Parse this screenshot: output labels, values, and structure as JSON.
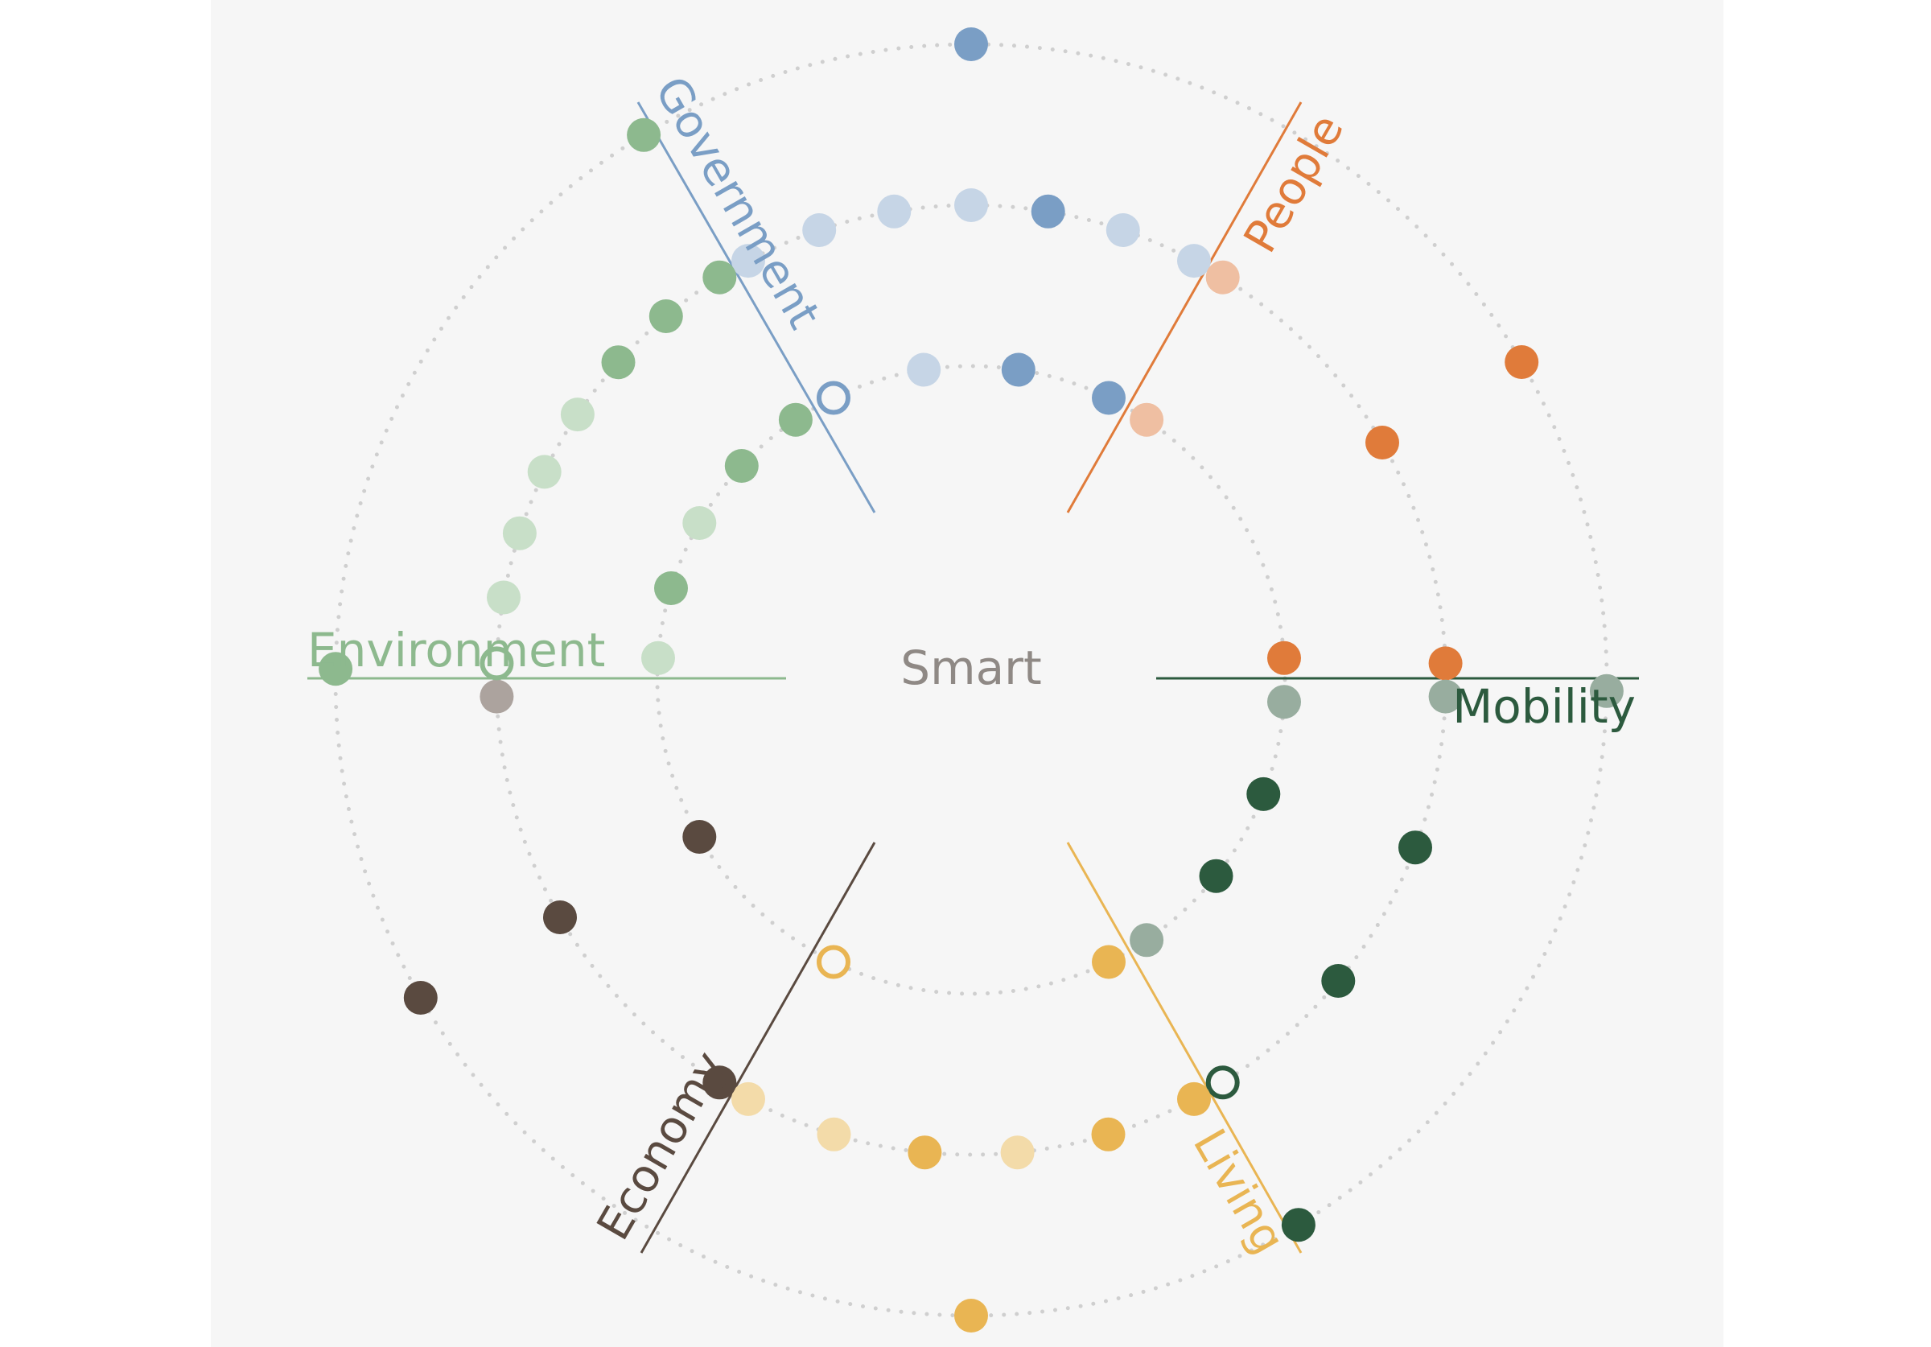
{
  "center_label": "Smart",
  "colors": {
    "ring": "#cfcfcf",
    "center_text": "#8f8985",
    "panel": "#f6f6f6"
  },
  "sectors": [
    {
      "id": "government",
      "label": "Government",
      "color": "#7a9ec5",
      "light": "#c6d5e6"
    },
    {
      "id": "people",
      "label": "People",
      "color": "#e07b3a",
      "light": "#efbfa2"
    },
    {
      "id": "mobility",
      "label": "Mobility",
      "color": "#2c5a3e",
      "light": "#98ad9f"
    },
    {
      "id": "living",
      "label": "Living",
      "color": "#e9b553",
      "light": "#f3dba9"
    },
    {
      "id": "economy",
      "label": "Economy",
      "color": "#5a4a40",
      "light": "#aca39e"
    },
    {
      "id": "environment",
      "label": "Environment",
      "color": "#8db98e",
      "light": "#c8dfc8"
    }
  ],
  "dot_groups": [
    {
      "sector": "government",
      "ring": 1,
      "tones": [
        "outline",
        "light",
        "dark",
        "dark"
      ]
    },
    {
      "sector": "government",
      "ring": 2,
      "tones": [
        "light",
        "light",
        "light",
        "light",
        "dark",
        "light",
        "light"
      ]
    },
    {
      "sector": "government",
      "ring": 3,
      "tones": [
        "dark"
      ]
    },
    {
      "sector": "people",
      "ring": 1,
      "tones": [
        "light",
        "dark"
      ]
    },
    {
      "sector": "people",
      "ring": 2,
      "tones": [
        "light",
        "dark",
        "dark"
      ]
    },
    {
      "sector": "people",
      "ring": 3,
      "tones": [
        "dark"
      ]
    },
    {
      "sector": "mobility",
      "ring": 1,
      "tones": [
        "light",
        "dark",
        "dark",
        "light"
      ]
    },
    {
      "sector": "mobility",
      "ring": 2,
      "tones": [
        "light",
        "dark",
        "dark",
        "outline"
      ]
    },
    {
      "sector": "mobility",
      "ring": 3,
      "tones": [
        "light",
        "dark"
      ]
    },
    {
      "sector": "living",
      "ring": 1,
      "tones": [
        "dark",
        "outline"
      ]
    },
    {
      "sector": "living",
      "ring": 2,
      "tones": [
        "dark",
        "dark",
        "light",
        "dark",
        "light",
        "light"
      ]
    },
    {
      "sector": "living",
      "ring": 3,
      "tones": [
        "dark"
      ]
    },
    {
      "sector": "economy",
      "ring": 1,
      "tones": [
        "dark"
      ]
    },
    {
      "sector": "economy",
      "ring": 2,
      "tones": [
        "dark",
        "dark",
        "light"
      ]
    },
    {
      "sector": "economy",
      "ring": 3,
      "tones": [
        "dark"
      ]
    },
    {
      "sector": "environment",
      "ring": 1,
      "tones": [
        "light",
        "dark",
        "light",
        "dark",
        "dark"
      ]
    },
    {
      "sector": "environment",
      "ring": 2,
      "tones": [
        "outline",
        "light",
        "light",
        "light",
        "light",
        "dark",
        "dark",
        "dark"
      ]
    },
    {
      "sector": "environment",
      "ring": 3,
      "tones": [
        "dark",
        "dark"
      ]
    }
  ]
}
